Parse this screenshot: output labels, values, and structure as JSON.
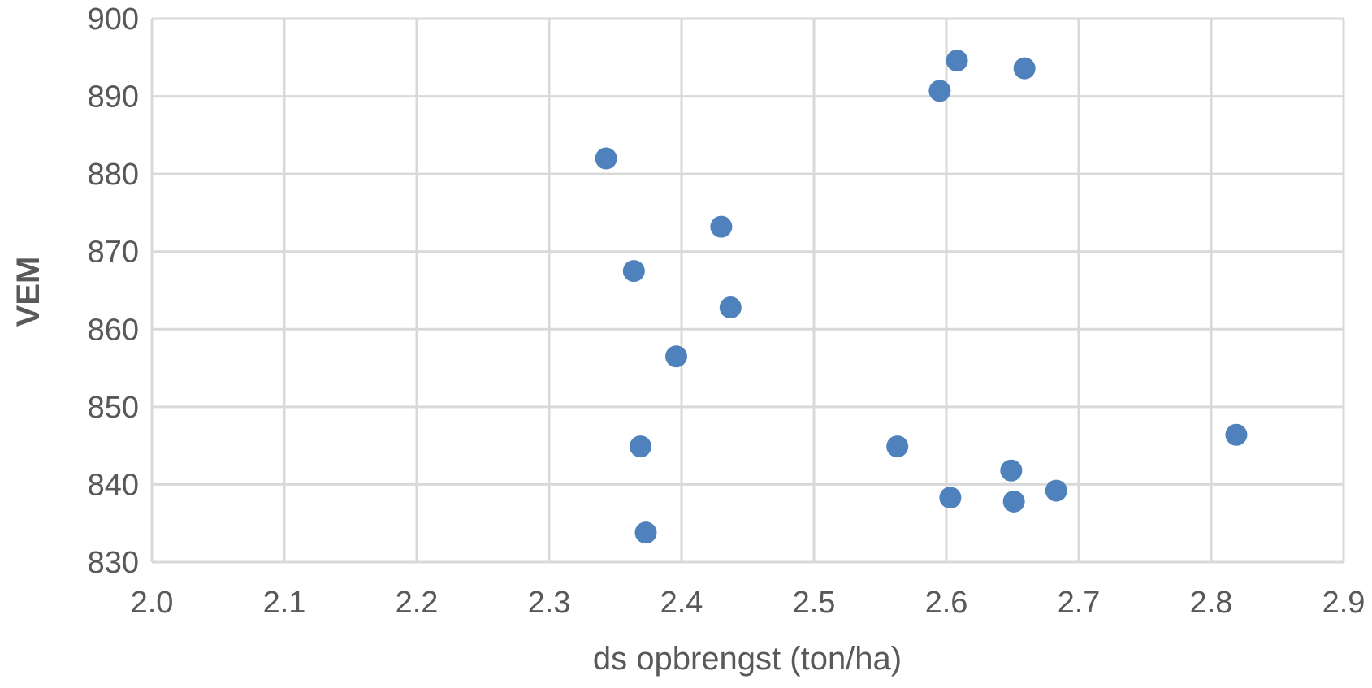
{
  "chart_data": {
    "type": "scatter",
    "title": "",
    "xlabel": "ds opbrengst (ton/ha)",
    "ylabel": "VEM",
    "xlim": [
      2.0,
      2.9
    ],
    "ylim": [
      830,
      900
    ],
    "x_ticks": [
      "2.0",
      "2.1",
      "2.2",
      "2.3",
      "2.4",
      "2.5",
      "2.6",
      "2.7",
      "2.8",
      "2.9"
    ],
    "y_ticks": [
      "830",
      "840",
      "850",
      "860",
      "870",
      "880",
      "890",
      "900"
    ],
    "grid": true,
    "legend": "none",
    "marker_color": "#4f81bd",
    "series": [
      {
        "points": [
          {
            "x": 2.343,
            "y": 882.0
          },
          {
            "x": 2.364,
            "y": 867.5
          },
          {
            "x": 2.369,
            "y": 844.9
          },
          {
            "x": 2.373,
            "y": 833.8
          },
          {
            "x": 2.396,
            "y": 856.5
          },
          {
            "x": 2.43,
            "y": 873.2
          },
          {
            "x": 2.437,
            "y": 862.8
          },
          {
            "x": 2.563,
            "y": 844.9
          },
          {
            "x": 2.595,
            "y": 890.7
          },
          {
            "x": 2.603,
            "y": 838.3
          },
          {
            "x": 2.608,
            "y": 894.6
          },
          {
            "x": 2.649,
            "y": 841.8
          },
          {
            "x": 2.651,
            "y": 837.8
          },
          {
            "x": 2.659,
            "y": 893.6
          },
          {
            "x": 2.683,
            "y": 839.2
          },
          {
            "x": 2.819,
            "y": 846.4
          }
        ]
      }
    ]
  }
}
